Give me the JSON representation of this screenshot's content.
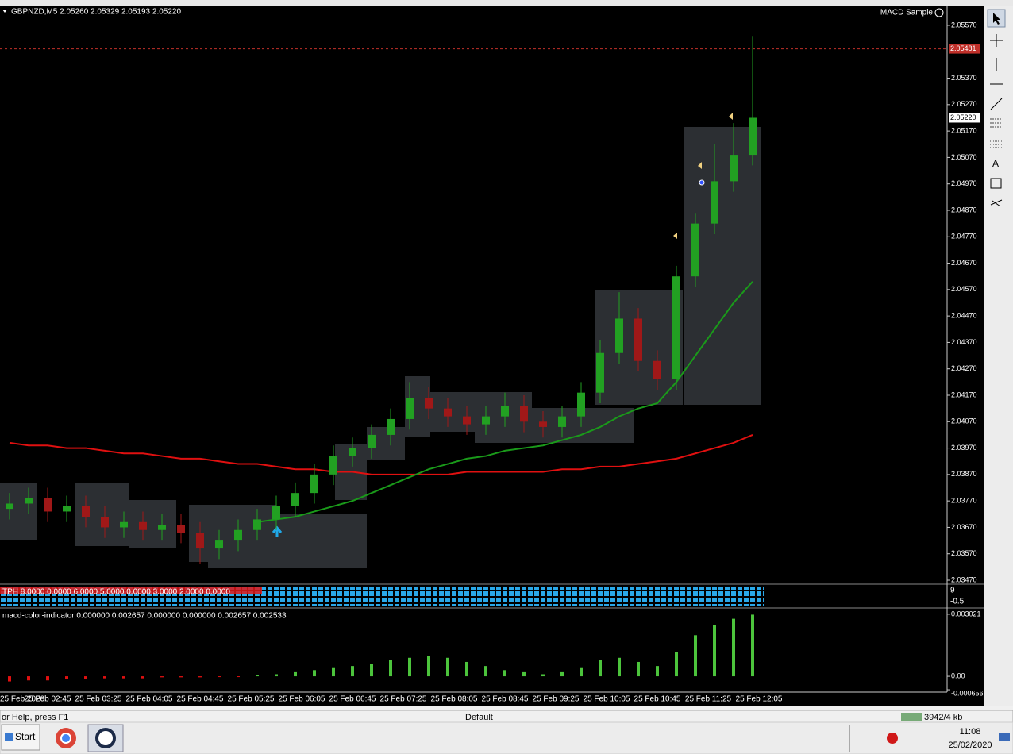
{
  "window": {
    "time_labels": [
      "25 Feb 2020",
      "25 Feb 02:45",
      "25 Feb 03:25",
      "25 Feb 04:05",
      "25 Feb 04:45",
      "25 Feb 05:25",
      "25 Feb 06:05",
      "25 Feb 06:45",
      "25 Feb 07:25",
      "25 Feb 08:05",
      "25 Feb 08:45",
      "25 Feb 09:25",
      "25 Feb 10:05",
      "25 Feb 10:45",
      "25 Feb 11:25",
      "25 Feb 12:05"
    ],
    "tph_text": "TPH 8.0000 0.0000 6.0000 5.0000 0.0000 3.0000 2.0000 0.0000",
    "tph_scale": [
      "9",
      "-0.5"
    ]
  },
  "chart_data": [
    {
      "type": "candlestick",
      "title": "GBPNZD,M5  2.05260 2.05329 2.05193 2.05220",
      "subtitle": "MACD Sample",
      "open": [
        2.0374,
        2.0376,
        2.0378,
        2.0373,
        2.0375,
        2.0371,
        2.0367,
        2.0369,
        2.0366,
        2.0368,
        2.0365,
        2.0359,
        2.0362,
        2.0366,
        2.037,
        2.0375,
        2.038,
        2.0387,
        2.0394,
        2.0397,
        2.0402,
        2.0408,
        2.0416,
        2.0412,
        2.0409,
        2.0406,
        2.0409,
        2.0413,
        2.0407,
        2.0405,
        2.0409,
        2.0418,
        2.0433,
        2.0446,
        2.043,
        2.0423,
        2.0462,
        2.0482,
        2.0498,
        2.0508
      ],
      "high": [
        2.038,
        2.0382,
        2.0382,
        2.0379,
        2.0379,
        2.0375,
        2.0373,
        2.0373,
        2.0372,
        2.0372,
        2.0369,
        2.0366,
        2.037,
        2.0374,
        2.0379,
        2.0384,
        2.0391,
        2.0398,
        2.0401,
        2.0406,
        2.0412,
        2.0422,
        2.042,
        2.0416,
        2.0413,
        2.0413,
        2.0418,
        2.0417,
        2.0411,
        2.0413,
        2.0422,
        2.0438,
        2.0456,
        2.045,
        2.0434,
        2.0466,
        2.0486,
        2.0512,
        2.052,
        2.0553
      ],
      "low": [
        2.037,
        2.0372,
        2.0369,
        2.0369,
        2.0367,
        2.0363,
        2.0363,
        2.0362,
        2.0362,
        2.0361,
        2.0353,
        2.0355,
        2.0358,
        2.0362,
        2.0366,
        2.0371,
        2.0376,
        2.0383,
        2.039,
        2.0393,
        2.0398,
        2.0404,
        2.0408,
        2.0405,
        2.0402,
        2.0402,
        2.0405,
        2.0403,
        2.0401,
        2.0401,
        2.0405,
        2.0414,
        2.0429,
        2.0426,
        2.0419,
        2.0419,
        2.0458,
        2.0478,
        2.0494,
        2.0504
      ],
      "close": [
        2.0376,
        2.0378,
        2.0373,
        2.0375,
        2.0371,
        2.0367,
        2.0369,
        2.0366,
        2.0368,
        2.0365,
        2.0359,
        2.0362,
        2.0366,
        2.037,
        2.0375,
        2.038,
        2.0387,
        2.0394,
        2.0397,
        2.0402,
        2.0408,
        2.0416,
        2.0412,
        2.0409,
        2.0406,
        2.0409,
        2.0413,
        2.0407,
        2.0405,
        2.0409,
        2.0418,
        2.0433,
        2.0446,
        2.043,
        2.0423,
        2.0462,
        2.0482,
        2.0498,
        2.0508,
        2.0522
      ],
      "up_color": "#22a022",
      "down_color": "#a01818",
      "lines": [
        {
          "color": "#e01010",
          "values": [
            2.0399,
            2.0398,
            2.0398,
            2.0397,
            2.0397,
            2.0396,
            2.0395,
            2.0395,
            2.0394,
            2.0393,
            2.0393,
            2.0392,
            2.0391,
            2.0391,
            2.039,
            2.0389,
            2.0389,
            2.0388,
            2.0388,
            2.0387,
            2.0387,
            2.0387,
            2.0387,
            2.0387,
            2.0388,
            2.0388,
            2.0388,
            2.0388,
            2.0388,
            2.0389,
            2.0389,
            2.039,
            2.039,
            2.0391,
            2.0392,
            2.0393,
            2.0395,
            2.0397,
            2.0399,
            2.0402
          ]
        },
        {
          "color": "#1a9a1a",
          "values": [
            null,
            null,
            null,
            null,
            null,
            null,
            null,
            null,
            null,
            null,
            null,
            null,
            null,
            2.0369,
            2.037,
            2.0371,
            2.0373,
            2.0375,
            2.0377,
            2.038,
            2.0383,
            2.0386,
            2.0389,
            2.0391,
            2.0393,
            2.0394,
            2.0396,
            2.0397,
            2.0398,
            2.04,
            2.0402,
            2.0405,
            2.0409,
            2.0412,
            2.0414,
            2.0422,
            2.0432,
            2.0442,
            2.0452,
            2.046
          ]
        }
      ],
      "ask_line": {
        "value": 2.05481,
        "label": "2.05481",
        "color": "#c0302a"
      },
      "last_price": {
        "value": 2.0522,
        "label": "2.05220"
      },
      "ylim": [
        2.03458,
        2.05645
      ],
      "yticks": [
        {
          "value": 2.0557,
          "label": "2.05570"
        },
        {
          "value": 2.0537,
          "label": "2.05370"
        },
        {
          "value": 2.0527,
          "label": "2.05270"
        },
        {
          "value": 2.0517,
          "label": "2.05170"
        },
        {
          "value": 2.0507,
          "label": "2.05070"
        },
        {
          "value": 2.0497,
          "label": "2.04970"
        },
        {
          "value": 2.0487,
          "label": "2.04870"
        },
        {
          "value": 2.0477,
          "label": "2.04770"
        },
        {
          "value": 2.0467,
          "label": "2.04670"
        },
        {
          "value": 2.0457,
          "label": "2.04570"
        },
        {
          "value": 2.0447,
          "label": "2.04470"
        },
        {
          "value": 2.0437,
          "label": "2.04370"
        },
        {
          "value": 2.0427,
          "label": "2.04270"
        },
        {
          "value": 2.0417,
          "label": "2.04170"
        },
        {
          "value": 2.0407,
          "label": "2.04070"
        },
        {
          "value": 2.0397,
          "label": "2.03970"
        },
        {
          "value": 2.0387,
          "label": "2.03870"
        },
        {
          "value": 2.0377,
          "label": "2.03770"
        },
        {
          "value": 2.0367,
          "label": "2.03670"
        },
        {
          "value": 2.0357,
          "label": "2.03570"
        },
        {
          "value": 2.0347,
          "label": "2.03470"
        }
      ]
    },
    {
      "type": "bar",
      "title": "macd-color-indicator 0.000000 0.002657 0.000000 0.000000 0.002657 0.002533",
      "values": [
        -0.00025,
        -0.0002,
        -0.0002,
        -0.00015,
        -0.00015,
        -0.0001,
        -0.0001,
        -0.0001,
        -5e-05,
        -5e-05,
        -5e-05,
        -3e-05,
        -2e-05,
        5e-05,
        0.0001,
        0.0002,
        0.0003,
        0.0004,
        0.0005,
        0.0006,
        0.0008,
        0.0009,
        0.001,
        0.0009,
        0.0007,
        0.0005,
        0.0003,
        0.0002,
        0.0001,
        0.0002,
        0.0004,
        0.0008,
        0.0009,
        0.0007,
        0.0005,
        0.0012,
        0.002,
        0.0025,
        0.0028,
        0.003
      ],
      "up_color": "#4cc43c",
      "down_color": "#e01010",
      "ylim": [
        -0.00077,
        0.00321
      ],
      "yticks": [
        0.003021,
        {
          "value": 0,
          "label": "0.00"
        },
        -0.000656
      ]
    }
  ],
  "status_bar": {
    "help": "or Help, press F1",
    "profile": "Default",
    "traffic": "3942/4 kb"
  },
  "taskbar": {
    "start": "Start",
    "time": "11:08",
    "date": "25/02/2020"
  }
}
